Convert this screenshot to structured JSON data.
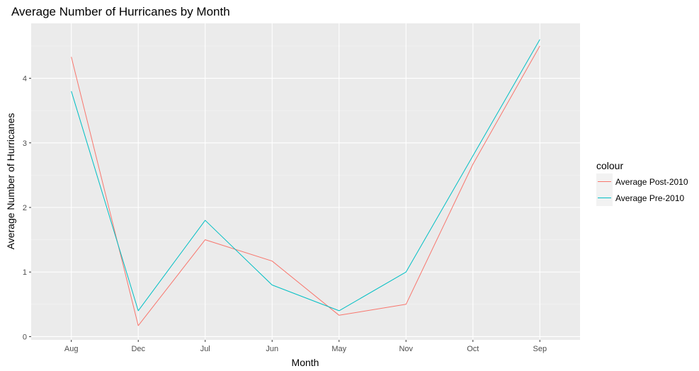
{
  "chart_data": {
    "type": "line",
    "title": "Average Number of Hurricanes by Month",
    "xlabel": "Month",
    "ylabel": "Average Number of Hurricanes",
    "categories": [
      "Aug",
      "Dec",
      "Jul",
      "Jun",
      "May",
      "Nov",
      "Oct",
      "Sep"
    ],
    "ylim": [
      -0.05,
      4.85
    ],
    "yticks": [
      0,
      1,
      2,
      3,
      4
    ],
    "ytick_labels": [
      "0",
      "1",
      "2",
      "3",
      "4"
    ],
    "grid": true,
    "legend": {
      "title": "colour",
      "placement": "right"
    },
    "series": [
      {
        "name": "Average Post-2010",
        "color": "#F8766D",
        "values": [
          4.33,
          0.17,
          1.5,
          1.17,
          0.33,
          0.5,
          2.67,
          4.5
        ]
      },
      {
        "name": "Average Pre-2010",
        "color": "#00BFC4",
        "values": [
          3.8,
          0.4,
          1.8,
          0.8,
          0.4,
          1.0,
          2.8,
          4.6
        ]
      }
    ]
  }
}
